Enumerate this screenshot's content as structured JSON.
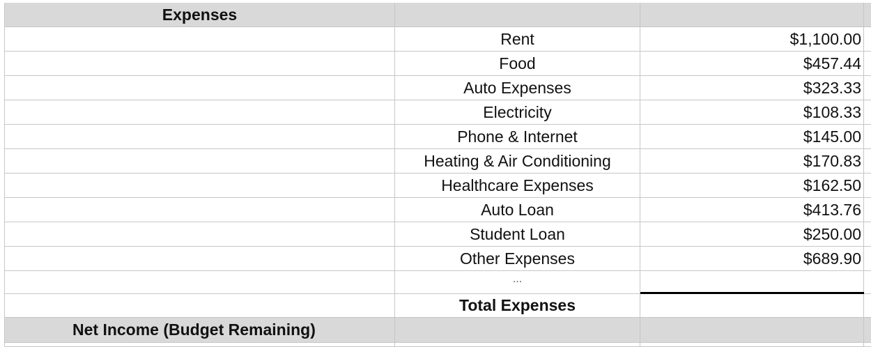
{
  "section_header": "Expenses",
  "expenses": [
    {
      "label": "Rent",
      "amount": "$1,100.00"
    },
    {
      "label": "Food",
      "amount": "$457.44"
    },
    {
      "label": "Auto Expenses",
      "amount": "$323.33"
    },
    {
      "label": "Electricity",
      "amount": "$108.33"
    },
    {
      "label": "Phone & Internet",
      "amount": "$145.00"
    },
    {
      "label": "Heating & Air Conditioning",
      "amount": "$170.83"
    },
    {
      "label": "Healthcare Expenses",
      "amount": "$162.50"
    },
    {
      "label": "Auto Loan",
      "amount": "$413.76"
    },
    {
      "label": "Student Loan",
      "amount": "$250.00"
    },
    {
      "label": "Other Expenses",
      "amount": "$689.90"
    }
  ],
  "ellipsis": "...",
  "total_label": "Total Expenses",
  "net_income_label": "Net Income (Budget Remaining)",
  "colors": {
    "header_fill": "#d9d9d9",
    "gridline": "#c6c6c6"
  }
}
